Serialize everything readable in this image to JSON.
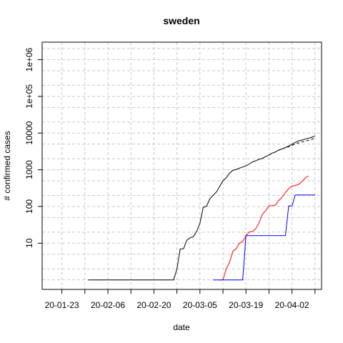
{
  "chart_data": {
    "type": "line",
    "title": "sweden",
    "xlabel": "date",
    "ylabel": "# confirmed cases",
    "y_scale": "log",
    "grid": true,
    "x_tick_labels": [
      "20-01-23",
      "20-02-06",
      "20-02-20",
      "20-03-05",
      "20-03-19",
      "20-04-02"
    ],
    "x_ticks": [
      "2020-01-23",
      "2020-01-30",
      "2020-02-06",
      "2020-02-13",
      "2020-02-20",
      "2020-02-27",
      "2020-03-05",
      "2020-03-12",
      "2020-03-19",
      "2020-03-26",
      "2020-04-02",
      "2020-04-09"
    ],
    "y_tick_labels": [
      "10",
      "100",
      "1000",
      "10000",
      "1e+05",
      "1e+06"
    ],
    "y_ticks": [
      10,
      100,
      1000,
      10000,
      100000,
      1000000
    ],
    "xlim": [
      "2020-01-17",
      "2020-04-11"
    ],
    "ylim": [
      0.55,
      3000000
    ],
    "series": [
      {
        "color": "#000000",
        "dash": "solid",
        "points": [
          [
            "2020-01-31",
            1
          ],
          [
            "2020-02-26",
            1
          ],
          [
            "2020-02-27",
            2
          ],
          [
            "2020-02-28",
            7
          ],
          [
            "2020-02-29",
            7
          ],
          [
            "2020-03-01",
            12
          ],
          [
            "2020-03-02",
            14
          ],
          [
            "2020-03-03",
            15
          ],
          [
            "2020-03-04",
            21
          ],
          [
            "2020-03-05",
            35
          ],
          [
            "2020-03-06",
            94
          ],
          [
            "2020-03-07",
            101
          ],
          [
            "2020-03-08",
            161
          ],
          [
            "2020-03-09",
            203
          ],
          [
            "2020-03-10",
            248
          ],
          [
            "2020-03-11",
            355
          ],
          [
            "2020-03-12",
            500
          ],
          [
            "2020-03-13",
            599
          ],
          [
            "2020-03-14",
            814
          ],
          [
            "2020-03-15",
            961
          ],
          [
            "2020-03-16",
            1022
          ],
          [
            "2020-03-17",
            1103
          ],
          [
            "2020-03-18",
            1190
          ],
          [
            "2020-03-19",
            1279
          ],
          [
            "2020-03-20",
            1439
          ],
          [
            "2020-03-21",
            1639
          ],
          [
            "2020-03-22",
            1763
          ],
          [
            "2020-03-23",
            1934
          ],
          [
            "2020-03-24",
            2046
          ],
          [
            "2020-03-25",
            2286
          ],
          [
            "2020-03-26",
            2526
          ],
          [
            "2020-03-27",
            2840
          ],
          [
            "2020-03-28",
            3069
          ],
          [
            "2020-03-29",
            3447
          ],
          [
            "2020-03-30",
            3700
          ],
          [
            "2020-03-31",
            4028
          ],
          [
            "2020-04-01",
            4435
          ],
          [
            "2020-04-02",
            4947
          ],
          [
            "2020-04-03",
            5568
          ],
          [
            "2020-04-04",
            6131
          ],
          [
            "2020-04-05",
            6443
          ],
          [
            "2020-04-06",
            6830
          ],
          [
            "2020-04-07",
            7206
          ],
          [
            "2020-04-08",
            7693
          ],
          [
            "2020-04-09",
            8419
          ]
        ]
      },
      {
        "color": "#000000",
        "dash": "dashed",
        "points": [
          [
            "2020-03-26",
            2526
          ],
          [
            "2020-03-27",
            2840
          ],
          [
            "2020-03-28",
            3069
          ],
          [
            "2020-03-29",
            3447
          ],
          [
            "2020-03-30",
            3700
          ],
          [
            "2020-03-31",
            3950
          ],
          [
            "2020-04-01",
            4250
          ],
          [
            "2020-04-02",
            4600
          ],
          [
            "2020-04-03",
            5050
          ],
          [
            "2020-04-04",
            5450
          ],
          [
            "2020-04-05",
            5750
          ],
          [
            "2020-04-06",
            6000
          ],
          [
            "2020-04-07",
            6350
          ],
          [
            "2020-04-08",
            6750
          ],
          [
            "2020-04-09",
            7300
          ]
        ]
      },
      {
        "color": "#ff0000",
        "dash": "solid",
        "points": [
          [
            "2020-03-11",
            1
          ],
          [
            "2020-03-12",
            1
          ],
          [
            "2020-03-13",
            2
          ],
          [
            "2020-03-14",
            3
          ],
          [
            "2020-03-15",
            6
          ],
          [
            "2020-03-16",
            7
          ],
          [
            "2020-03-17",
            10
          ],
          [
            "2020-03-18",
            11
          ],
          [
            "2020-03-19",
            16
          ],
          [
            "2020-03-20",
            20
          ],
          [
            "2020-03-21",
            21
          ],
          [
            "2020-03-22",
            25
          ],
          [
            "2020-03-23",
            36
          ],
          [
            "2020-03-24",
            62
          ],
          [
            "2020-03-25",
            77
          ],
          [
            "2020-03-26",
            105
          ],
          [
            "2020-03-27",
            105
          ],
          [
            "2020-03-28",
            110
          ],
          [
            "2020-03-29",
            146
          ],
          [
            "2020-03-30",
            180
          ],
          [
            "2020-03-31",
            239
          ],
          [
            "2020-04-01",
            308
          ],
          [
            "2020-04-02",
            358
          ],
          [
            "2020-04-03",
            373
          ],
          [
            "2020-04-04",
            401
          ],
          [
            "2020-04-05",
            477
          ],
          [
            "2020-04-06",
            591
          ],
          [
            "2020-04-07",
            687
          ]
        ]
      },
      {
        "color": "#0000ff",
        "dash": "solid",
        "points": [
          [
            "2020-03-09",
            1
          ],
          [
            "2020-03-18",
            1
          ],
          [
            "2020-03-19",
            16
          ],
          [
            "2020-03-31",
            16
          ],
          [
            "2020-04-01",
            103
          ],
          [
            "2020-04-02",
            103
          ],
          [
            "2020-04-03",
            205
          ],
          [
            "2020-04-09",
            205
          ]
        ]
      }
    ]
  }
}
